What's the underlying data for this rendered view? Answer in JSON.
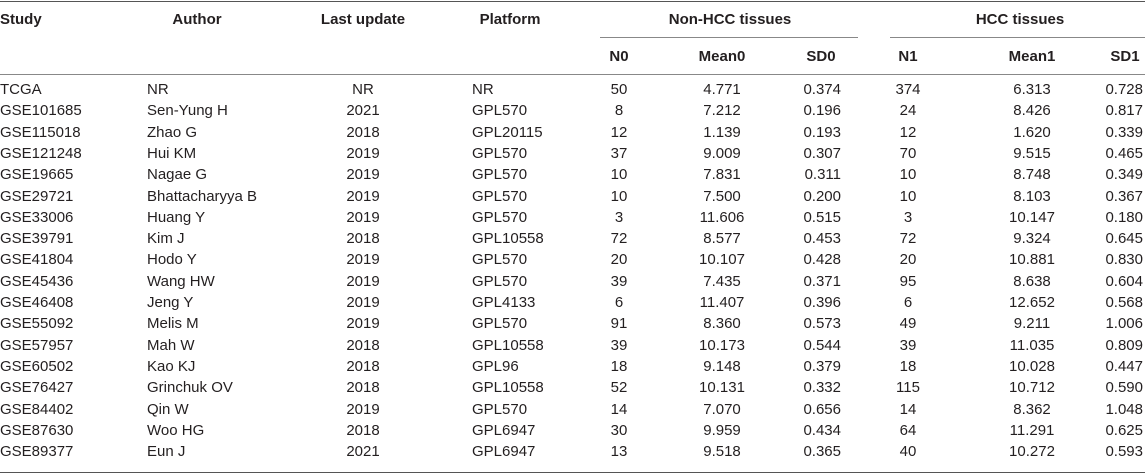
{
  "header": {
    "columns": [
      "Study",
      "Author",
      "Last update",
      "Platform"
    ],
    "groups": [
      {
        "label": "Non-HCC tissues",
        "columns": [
          "N0",
          "Mean0",
          "SD0"
        ]
      },
      {
        "label": "HCC tissues",
        "columns": [
          "N1",
          "Mean1",
          "SD1"
        ]
      }
    ]
  },
  "table": {
    "rows": [
      [
        "TCGA",
        "NR",
        "NR",
        "NR",
        "50",
        "4.771",
        "0.374",
        "374",
        "6.313",
        "0.728"
      ],
      [
        "GSE101685",
        "Sen-Yung H",
        "2021",
        "GPL570",
        "8",
        "7.212",
        "0.196",
        "24",
        "8.426",
        "0.817"
      ],
      [
        "GSE115018",
        "Zhao G",
        "2018",
        "GPL20115",
        "12",
        "1.139",
        "0.193",
        "12",
        "1.620",
        "0.339"
      ],
      [
        "GSE121248",
        "Hui KM",
        "2019",
        "GPL570",
        "37",
        "9.009",
        "0.307",
        "70",
        "9.515",
        "0.465"
      ],
      [
        "GSE19665",
        "Nagae G",
        "2019",
        "GPL570",
        "10",
        "7.831",
        "0.311",
        "10",
        "8.748",
        "0.349"
      ],
      [
        "GSE29721",
        "Bhattacharyya B",
        "2019",
        "GPL570",
        "10",
        "7.500",
        "0.200",
        "10",
        "8.103",
        "0.367"
      ],
      [
        "GSE33006",
        "Huang Y",
        "2019",
        "GPL570",
        "3",
        "11.606",
        "0.515",
        "3",
        "10.147",
        "0.180"
      ],
      [
        "GSE39791",
        "Kim J",
        "2018",
        "GPL10558",
        "72",
        "8.577",
        "0.453",
        "72",
        "9.324",
        "0.645"
      ],
      [
        "GSE41804",
        "Hodo Y",
        "2019",
        "GPL570",
        "20",
        "10.107",
        "0.428",
        "20",
        "10.881",
        "0.830"
      ],
      [
        "GSE45436",
        "Wang HW",
        "2019",
        "GPL570",
        "39",
        "7.435",
        "0.371",
        "95",
        "8.638",
        "0.604"
      ],
      [
        "GSE46408",
        "Jeng Y",
        "2019",
        "GPL4133",
        "6",
        "11.407",
        "0.396",
        "6",
        "12.652",
        "0.568"
      ],
      [
        "GSE55092",
        "Melis M",
        "2019",
        "GPL570",
        "91",
        "8.360",
        "0.573",
        "49",
        "9.211",
        "1.006"
      ],
      [
        "GSE57957",
        "Mah W",
        "2018",
        "GPL10558",
        "39",
        "10.173",
        "0.544",
        "39",
        "11.035",
        "0.809"
      ],
      [
        "GSE60502",
        "Kao KJ",
        "2018",
        "GPL96",
        "18",
        "9.148",
        "0.379",
        "18",
        "10.028",
        "0.447"
      ],
      [
        "GSE76427",
        "Grinchuk OV",
        "2018",
        "GPL10558",
        "52",
        "10.131",
        "0.332",
        "115",
        "10.712",
        "0.590"
      ],
      [
        "GSE84402",
        "Qin W",
        "2019",
        "GPL570",
        "14",
        "7.070",
        "0.656",
        "14",
        "8.362",
        "1.048"
      ],
      [
        "GSE87630",
        "Woo HG",
        "2018",
        "GPL6947",
        "30",
        "9.959",
        "0.434",
        "64",
        "11.291",
        "0.625"
      ],
      [
        "GSE89377",
        "Eun J",
        "2021",
        "GPL6947",
        "13",
        "9.518",
        "0.365",
        "40",
        "10.272",
        "0.593"
      ]
    ]
  }
}
